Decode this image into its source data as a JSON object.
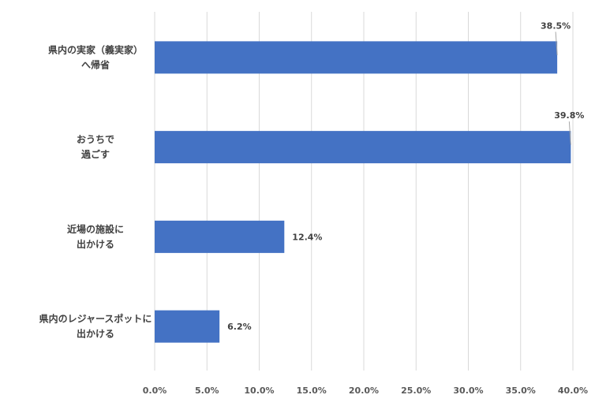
{
  "chart_data": {
    "type": "bar",
    "orientation": "horizontal",
    "categories": [
      [
        "県内の実家（義実家）",
        "へ帰省"
      ],
      [
        "おうちで",
        "過ごす"
      ],
      [
        "近場の施設に",
        "出かける"
      ],
      [
        "県内のレジャースポットに",
        "出かける"
      ]
    ],
    "values": [
      38.5,
      39.8,
      12.4,
      6.2
    ],
    "value_labels": [
      "38.5%",
      "39.8%",
      "12.4%",
      "6.2%"
    ],
    "x_ticks": [
      "0.0%",
      "5.0%",
      "10.0%",
      "15.0%",
      "20.0%",
      "25.0%",
      "30.0%",
      "35.0%",
      "40.0%"
    ],
    "xlim": [
      0,
      40
    ],
    "grid": true,
    "bar_color": "#4472c4",
    "title": "",
    "xlabel": "",
    "ylabel": ""
  }
}
